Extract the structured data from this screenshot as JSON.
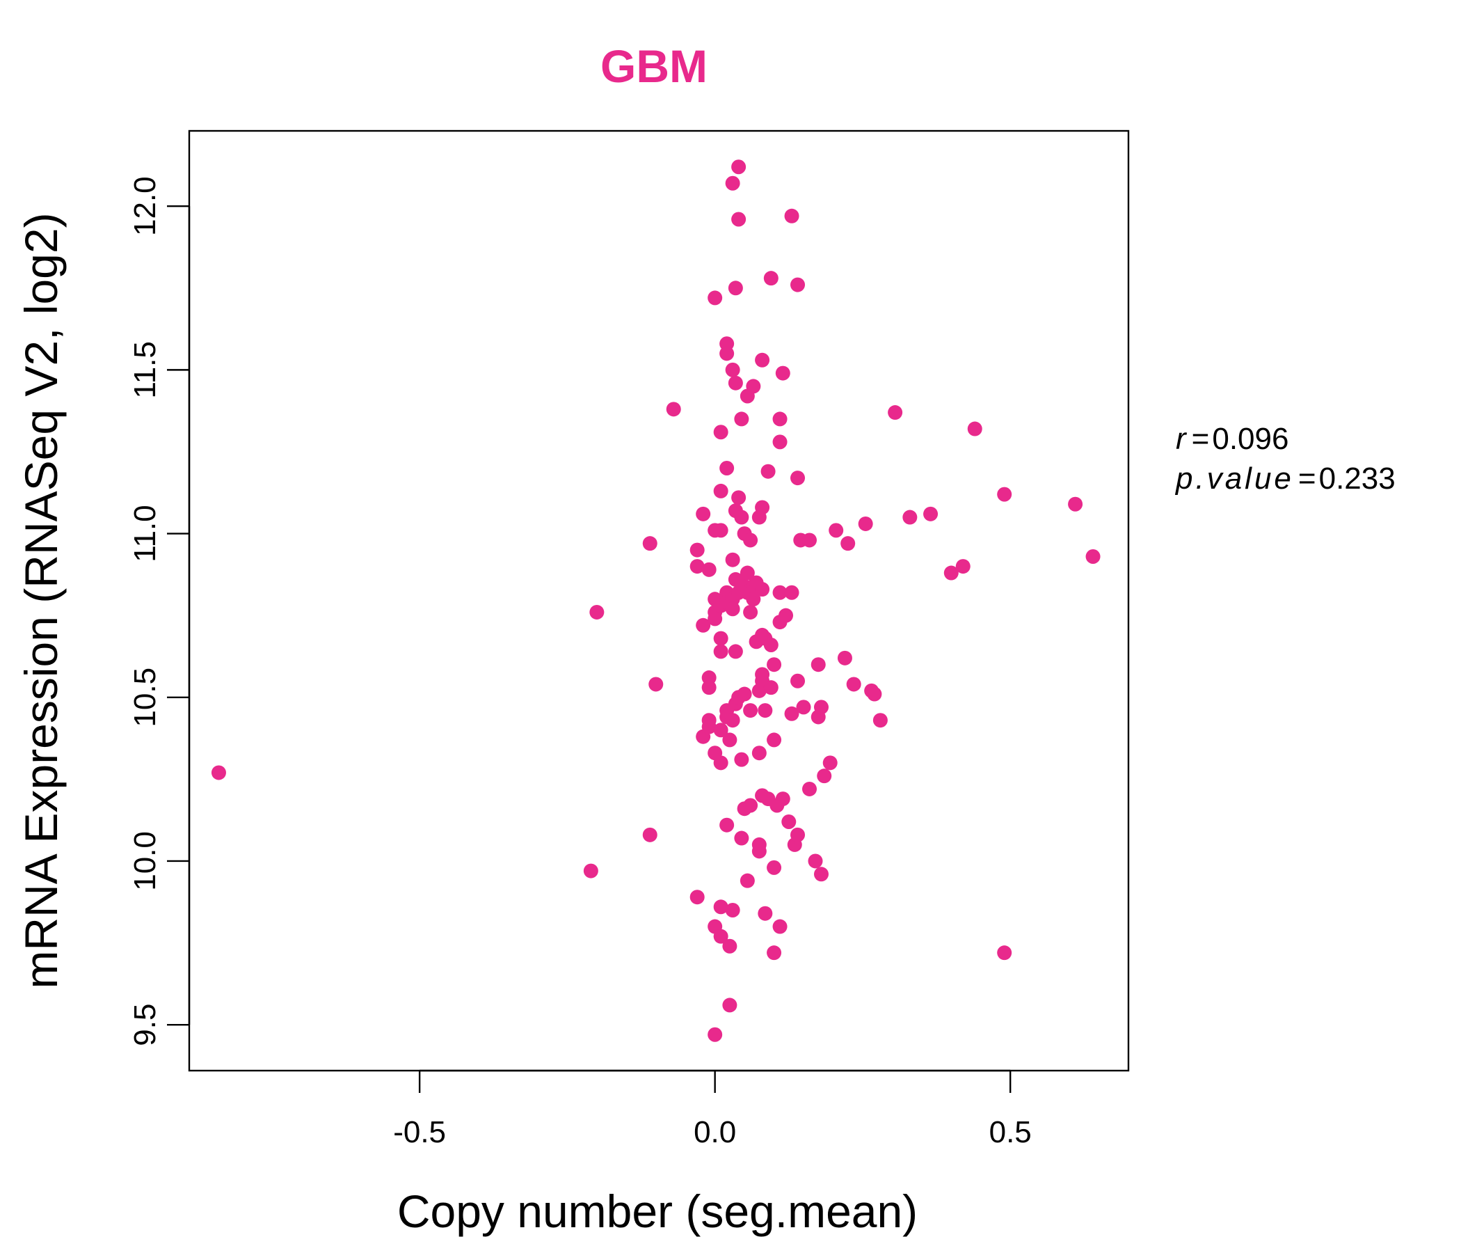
{
  "chart_data": {
    "type": "scatter",
    "title": "GBM",
    "xlabel": "Copy number (seg.mean)",
    "ylabel": "mRNA Expression (RNASeq V2, log2)",
    "xlim": [
      -0.89,
      0.7
    ],
    "ylim": [
      9.36,
      12.23
    ],
    "x_ticks": [
      -0.5,
      0.0,
      0.5
    ],
    "x_tick_labels": [
      "-0.5",
      "0.0",
      "0.5"
    ],
    "y_ticks": [
      9.5,
      10.0,
      10.5,
      11.0,
      11.5,
      12.0
    ],
    "y_tick_labels": [
      "9.5",
      "10.0",
      "10.5",
      "11.0",
      "11.5",
      "12.0"
    ],
    "grid": false,
    "point_color": "#E8298C",
    "stats": {
      "r_label": "r",
      "r_value": "0.096",
      "p_label": "p.value",
      "p_value": "0.233"
    },
    "points": [
      {
        "x": -0.84,
        "y": 10.27
      },
      {
        "x": -0.21,
        "y": 9.97
      },
      {
        "x": -0.2,
        "y": 10.76
      },
      {
        "x": -0.11,
        "y": 10.97
      },
      {
        "x": -0.11,
        "y": 10.08
      },
      {
        "x": -0.1,
        "y": 10.54
      },
      {
        "x": -0.07,
        "y": 11.38
      },
      {
        "x": -0.03,
        "y": 10.95
      },
      {
        "x": -0.03,
        "y": 10.9
      },
      {
        "x": -0.03,
        "y": 9.89
      },
      {
        "x": -0.02,
        "y": 11.06
      },
      {
        "x": -0.02,
        "y": 10.72
      },
      {
        "x": -0.02,
        "y": 10.38
      },
      {
        "x": -0.01,
        "y": 10.89
      },
      {
        "x": -0.01,
        "y": 10.56
      },
      {
        "x": -0.01,
        "y": 10.53
      },
      {
        "x": -0.01,
        "y": 10.43
      },
      {
        "x": -0.01,
        "y": 10.41
      },
      {
        "x": 0.0,
        "y": 9.8
      },
      {
        "x": 0.0,
        "y": 11.72
      },
      {
        "x": 0.0,
        "y": 11.01
      },
      {
        "x": 0.0,
        "y": 10.8
      },
      {
        "x": 0.0,
        "y": 10.76
      },
      {
        "x": 0.0,
        "y": 10.74
      },
      {
        "x": 0.0,
        "y": 10.33
      },
      {
        "x": 0.0,
        "y": 9.47
      },
      {
        "x": 0.01,
        "y": 9.77
      },
      {
        "x": 0.01,
        "y": 11.31
      },
      {
        "x": 0.01,
        "y": 11.13
      },
      {
        "x": 0.01,
        "y": 11.01
      },
      {
        "x": 0.01,
        "y": 10.78
      },
      {
        "x": 0.01,
        "y": 10.68
      },
      {
        "x": 0.01,
        "y": 10.64
      },
      {
        "x": 0.01,
        "y": 10.4
      },
      {
        "x": 0.01,
        "y": 10.3
      },
      {
        "x": 0.01,
        "y": 9.86
      },
      {
        "x": 0.02,
        "y": 11.58
      },
      {
        "x": 0.02,
        "y": 11.55
      },
      {
        "x": 0.02,
        "y": 11.2
      },
      {
        "x": 0.02,
        "y": 10.82
      },
      {
        "x": 0.02,
        "y": 10.79
      },
      {
        "x": 0.02,
        "y": 10.46
      },
      {
        "x": 0.02,
        "y": 10.44
      },
      {
        "x": 0.02,
        "y": 10.11
      },
      {
        "x": 0.025,
        "y": 10.37
      },
      {
        "x": 0.025,
        "y": 9.74
      },
      {
        "x": 0.025,
        "y": 9.56
      },
      {
        "x": 0.03,
        "y": 12.07
      },
      {
        "x": 0.03,
        "y": 11.5
      },
      {
        "x": 0.03,
        "y": 10.92
      },
      {
        "x": 0.03,
        "y": 10.8
      },
      {
        "x": 0.03,
        "y": 10.77
      },
      {
        "x": 0.03,
        "y": 10.43
      },
      {
        "x": 0.03,
        "y": 9.85
      },
      {
        "x": 0.035,
        "y": 11.75
      },
      {
        "x": 0.035,
        "y": 11.46
      },
      {
        "x": 0.035,
        "y": 11.07
      },
      {
        "x": 0.035,
        "y": 10.86
      },
      {
        "x": 0.035,
        "y": 10.64
      },
      {
        "x": 0.035,
        "y": 10.48
      },
      {
        "x": 0.04,
        "y": 12.12
      },
      {
        "x": 0.04,
        "y": 11.96
      },
      {
        "x": 0.04,
        "y": 11.11
      },
      {
        "x": 0.04,
        "y": 10.82
      },
      {
        "x": 0.04,
        "y": 10.5
      },
      {
        "x": 0.045,
        "y": 11.35
      },
      {
        "x": 0.045,
        "y": 11.05
      },
      {
        "x": 0.045,
        "y": 10.85
      },
      {
        "x": 0.045,
        "y": 10.31
      },
      {
        "x": 0.045,
        "y": 10.07
      },
      {
        "x": 0.05,
        "y": 11.0
      },
      {
        "x": 0.05,
        "y": 10.51
      },
      {
        "x": 0.05,
        "y": 10.16
      },
      {
        "x": 0.055,
        "y": 11.42
      },
      {
        "x": 0.055,
        "y": 10.88
      },
      {
        "x": 0.055,
        "y": 10.82
      },
      {
        "x": 0.055,
        "y": 9.94
      },
      {
        "x": 0.06,
        "y": 10.98
      },
      {
        "x": 0.06,
        "y": 10.76
      },
      {
        "x": 0.06,
        "y": 10.46
      },
      {
        "x": 0.06,
        "y": 10.17
      },
      {
        "x": 0.065,
        "y": 11.45
      },
      {
        "x": 0.065,
        "y": 10.84
      },
      {
        "x": 0.065,
        "y": 10.8
      },
      {
        "x": 0.07,
        "y": 10.85
      },
      {
        "x": 0.07,
        "y": 10.67
      },
      {
        "x": 0.075,
        "y": 11.05
      },
      {
        "x": 0.075,
        "y": 10.52
      },
      {
        "x": 0.075,
        "y": 10.33
      },
      {
        "x": 0.075,
        "y": 10.05
      },
      {
        "x": 0.075,
        "y": 10.03
      },
      {
        "x": 0.08,
        "y": 11.53
      },
      {
        "x": 0.08,
        "y": 11.08
      },
      {
        "x": 0.08,
        "y": 10.83
      },
      {
        "x": 0.08,
        "y": 10.69
      },
      {
        "x": 0.08,
        "y": 10.57
      },
      {
        "x": 0.08,
        "y": 10.55
      },
      {
        "x": 0.08,
        "y": 10.2
      },
      {
        "x": 0.085,
        "y": 10.68
      },
      {
        "x": 0.085,
        "y": 10.46
      },
      {
        "x": 0.085,
        "y": 9.84
      },
      {
        "x": 0.09,
        "y": 11.19
      },
      {
        "x": 0.09,
        "y": 10.19
      },
      {
        "x": 0.095,
        "y": 11.78
      },
      {
        "x": 0.095,
        "y": 10.66
      },
      {
        "x": 0.095,
        "y": 10.53
      },
      {
        "x": 0.1,
        "y": 10.6
      },
      {
        "x": 0.1,
        "y": 10.37
      },
      {
        "x": 0.1,
        "y": 9.98
      },
      {
        "x": 0.1,
        "y": 9.72
      },
      {
        "x": 0.105,
        "y": 10.17
      },
      {
        "x": 0.11,
        "y": 11.35
      },
      {
        "x": 0.11,
        "y": 11.28
      },
      {
        "x": 0.11,
        "y": 10.82
      },
      {
        "x": 0.11,
        "y": 10.73
      },
      {
        "x": 0.11,
        "y": 9.8
      },
      {
        "x": 0.115,
        "y": 11.49
      },
      {
        "x": 0.115,
        "y": 10.19
      },
      {
        "x": 0.12,
        "y": 10.75
      },
      {
        "x": 0.125,
        "y": 10.12
      },
      {
        "x": 0.13,
        "y": 11.97
      },
      {
        "x": 0.13,
        "y": 10.82
      },
      {
        "x": 0.13,
        "y": 10.45
      },
      {
        "x": 0.135,
        "y": 10.05
      },
      {
        "x": 0.14,
        "y": 11.76
      },
      {
        "x": 0.14,
        "y": 11.17
      },
      {
        "x": 0.14,
        "y": 10.55
      },
      {
        "x": 0.14,
        "y": 10.08
      },
      {
        "x": 0.145,
        "y": 10.98
      },
      {
        "x": 0.15,
        "y": 10.47
      },
      {
        "x": 0.16,
        "y": 10.98
      },
      {
        "x": 0.16,
        "y": 10.22
      },
      {
        "x": 0.17,
        "y": 10.0
      },
      {
        "x": 0.175,
        "y": 10.6
      },
      {
        "x": 0.175,
        "y": 10.44
      },
      {
        "x": 0.18,
        "y": 10.47
      },
      {
        "x": 0.18,
        "y": 9.96
      },
      {
        "x": 0.185,
        "y": 10.26
      },
      {
        "x": 0.195,
        "y": 10.3
      },
      {
        "x": 0.205,
        "y": 11.01
      },
      {
        "x": 0.22,
        "y": 10.62
      },
      {
        "x": 0.225,
        "y": 10.97
      },
      {
        "x": 0.235,
        "y": 10.54
      },
      {
        "x": 0.255,
        "y": 11.03
      },
      {
        "x": 0.265,
        "y": 10.52
      },
      {
        "x": 0.27,
        "y": 10.51
      },
      {
        "x": 0.28,
        "y": 10.43
      },
      {
        "x": 0.305,
        "y": 11.37
      },
      {
        "x": 0.33,
        "y": 11.05
      },
      {
        "x": 0.365,
        "y": 11.06
      },
      {
        "x": 0.4,
        "y": 10.88
      },
      {
        "x": 0.42,
        "y": 10.9
      },
      {
        "x": 0.44,
        "y": 11.32
      },
      {
        "x": 0.49,
        "y": 11.12
      },
      {
        "x": 0.49,
        "y": 9.72
      },
      {
        "x": 0.61,
        "y": 11.09
      },
      {
        "x": 0.64,
        "y": 10.93
      }
    ]
  }
}
